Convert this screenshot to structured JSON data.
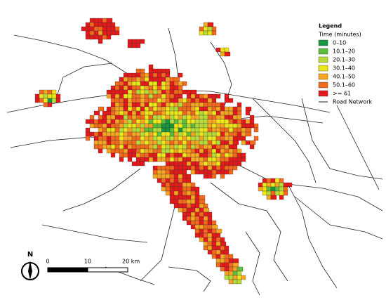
{
  "legend": {
    "title": "Legend",
    "subtitle": "Time (minutes)",
    "items": [
      {
        "label": "0–10",
        "color": "#1a9641"
      },
      {
        "label": "10.1–20",
        "color": "#5cbf3c"
      },
      {
        "label": "20.1–30",
        "color": "#b5dc3a"
      },
      {
        "label": "30.1–40",
        "color": "#ece71c"
      },
      {
        "label": "40.1–50",
        "color": "#f5a623"
      },
      {
        "label": "50.1–60",
        "color": "#f26b1d"
      },
      {
        "label": ">= 61",
        "color": "#e31a1c"
      }
    ],
    "road_label": "Road Network"
  },
  "north_arrow": {
    "label": "N"
  },
  "scale_bar": {
    "labels": [
      "0",
      "10",
      "20 km"
    ]
  }
}
